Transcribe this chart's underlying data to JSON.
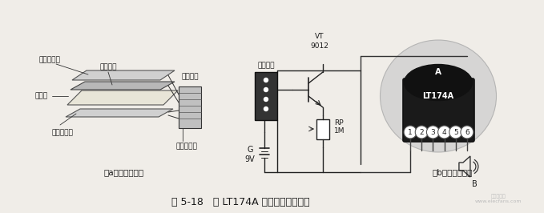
{
  "title": "图 5-18   用 LT174A 制作的婴儿报尿器",
  "subtitle_a": "（a）尿湿传感器",
  "subtitle_b": "（b）报尿蜂鸣器",
  "bg_color": "#f0ede8",
  "text_color": "#1a1a1a",
  "label_上层薄铜箔": "上层薄铜箔",
  "label_卫生纸": "卫生纸",
  "label_下层薄铜箔": "下层薄铜箔",
  "label_塑料薄膜": "塑料薄膜",
  "label_四线插头": "四线插头",
  "label_软质双导线": "软质双导线",
  "label_四线插座": "四线插座",
  "label_VT": "VT",
  "label_9012": "9012",
  "label_RP": "RP",
  "label_1M": "1M",
  "label_G": "G",
  "label_9V": "9V",
  "label_A": "A",
  "label_LT174A": "LT174A",
  "label_B": "B",
  "figsize": [
    6.79,
    2.66
  ],
  "dpi": 100
}
